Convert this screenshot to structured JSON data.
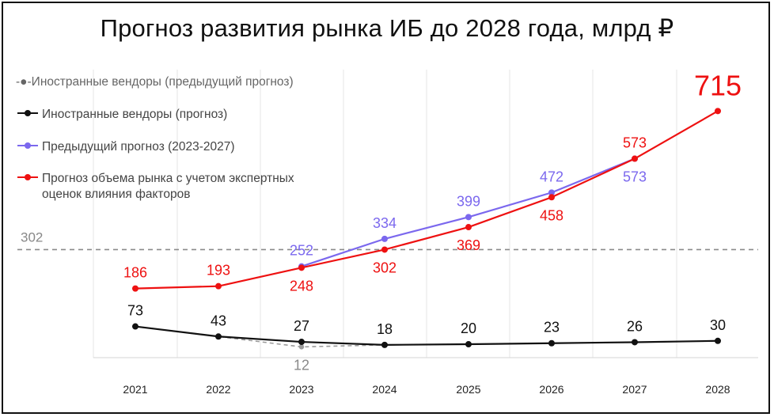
{
  "chart_data": {
    "type": "line",
    "title": "Прогноз развития рынка ИБ до 2028 года, млрд ₽",
    "categories": [
      "2021",
      "2022",
      "2023",
      "2024",
      "2025",
      "2026",
      "2027",
      "2028"
    ],
    "reference_line": {
      "value": 302,
      "label": "302",
      "style": "dashed",
      "color": "#8a8a8a"
    },
    "series": [
      {
        "name": "Иностранные вендоры (предыдущий прогноз)",
        "color": "#9a9a9a",
        "dashed": true,
        "values": [
          73,
          43,
          12,
          18,
          null,
          null,
          null,
          null
        ],
        "labels": [
          null,
          null,
          "12",
          null,
          null,
          null,
          null,
          null
        ],
        "label_positions": [
          "above",
          "above",
          "below",
          "above",
          "above",
          "above",
          "above",
          "above"
        ]
      },
      {
        "name": "Иностранные вендоры (прогноз)",
        "color": "#111111",
        "dashed": false,
        "values": [
          73,
          43,
          27,
          18,
          20,
          23,
          26,
          30
        ],
        "labels": [
          "73",
          "43",
          "27",
          "18",
          "20",
          "23",
          "26",
          "30"
        ],
        "label_positions": [
          "above",
          "above",
          "above",
          "above",
          "above",
          "above",
          "above",
          "above"
        ]
      },
      {
        "name": "Предыдущий прогноз (2023-2027)",
        "color": "#7b68ee",
        "dashed": false,
        "values": [
          null,
          null,
          252,
          334,
          399,
          472,
          573,
          null
        ],
        "labels": [
          null,
          null,
          "252",
          "334",
          "399",
          "472",
          "573",
          null
        ],
        "label_positions": [
          "above",
          "above",
          "above",
          "above",
          "above",
          "above",
          "below",
          "above"
        ]
      },
      {
        "name": "Прогноз объема рынка с учетом экспертных оценок влияния факторов",
        "color": "#ee1111",
        "dashed": false,
        "values": [
          186,
          193,
          248,
          302,
          369,
          458,
          573,
          715
        ],
        "labels": [
          "186",
          "193",
          "248",
          "302",
          "369",
          "458",
          "573",
          "715"
        ],
        "label_positions": [
          "above",
          "above",
          "below",
          "below",
          "below",
          "below",
          "above",
          "above-large"
        ]
      }
    ],
    "legend": {
      "placement": "top-left",
      "entries": [
        "-●-Иностранные вендоры (предыдущий прогноз)",
        "Иностранные вендоры (прогноз)",
        "Предыдущий прогноз (2023-2027)",
        "Прогноз объема рынка с учетом экспертных оценок влияния факторов"
      ]
    },
    "grid": "vertical",
    "xlabel": "",
    "ylabel": ""
  }
}
